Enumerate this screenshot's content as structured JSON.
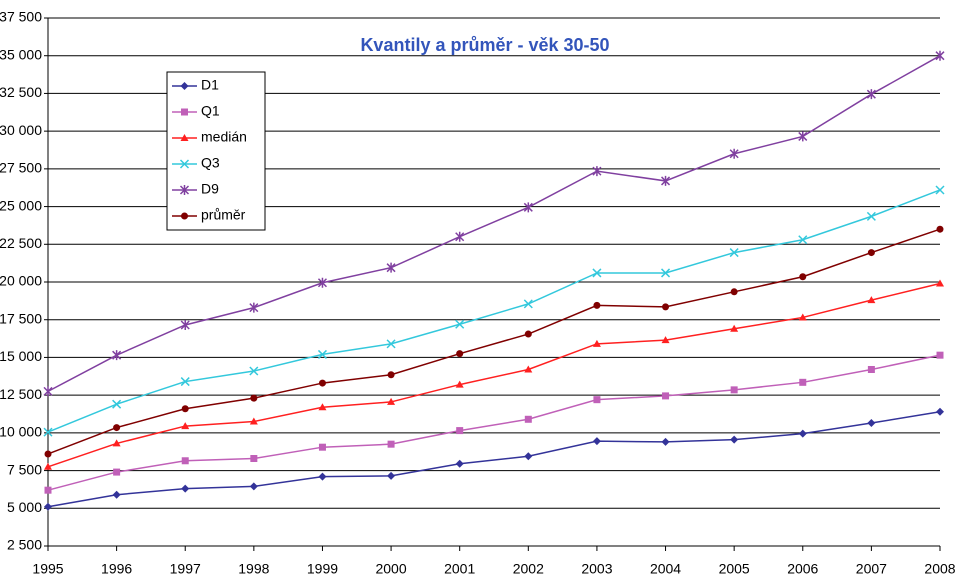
{
  "chart_data": {
    "type": "line",
    "title": "Kvantily a průměr - věk 30-50",
    "categories": [
      "1995",
      "1996",
      "1997",
      "1998",
      "1999",
      "2000",
      "2001",
      "2002",
      "2003",
      "2004",
      "2005",
      "2006",
      "2007",
      "2008"
    ],
    "series": [
      {
        "name": "D1",
        "color": "#333399",
        "marker": "diamond",
        "values": [
          5100,
          5900,
          6300,
          6450,
          7100,
          7150,
          7950,
          8450,
          9450,
          9400,
          9550,
          9950,
          10650,
          11400
        ]
      },
      {
        "name": "Q1",
        "color": "#c060b8",
        "marker": "square",
        "values": [
          6200,
          7400,
          8150,
          8300,
          9050,
          9250,
          10150,
          10900,
          12200,
          12450,
          12850,
          13350,
          14200,
          15150
        ]
      },
      {
        "name": "medián",
        "color": "#ff2020",
        "marker": "triangle",
        "values": [
          7750,
          9300,
          10450,
          10750,
          11700,
          12050,
          13200,
          14200,
          15900,
          16150,
          16900,
          17650,
          18800,
          19900
        ]
      },
      {
        "name": "Q3",
        "color": "#33c8dc",
        "marker": "x",
        "values": [
          10050,
          11900,
          13400,
          14100,
          15200,
          15900,
          17200,
          18550,
          20600,
          20600,
          21950,
          22800,
          24350,
          26100
        ]
      },
      {
        "name": "D9",
        "color": "#8040a0",
        "marker": "star",
        "values": [
          12750,
          15150,
          17150,
          18300,
          19950,
          20950,
          23000,
          24950,
          27350,
          26700,
          28500,
          29650,
          32450,
          35000
        ]
      },
      {
        "name": "průměr",
        "color": "#800000",
        "marker": "circle",
        "values": [
          8600,
          10350,
          11600,
          12300,
          13300,
          13850,
          15250,
          16550,
          18450,
          18350,
          19350,
          20350,
          21950,
          23500
        ]
      }
    ],
    "ylim": [
      2500,
      37500
    ],
    "yticks": [
      {
        "value": 2500,
        "label": "2 500"
      },
      {
        "value": 5000,
        "label": "5 000"
      },
      {
        "value": 7500,
        "label": "7 500"
      },
      {
        "value": 10000,
        "label": "10 000"
      },
      {
        "value": 12500,
        "label": "12 500"
      },
      {
        "value": 15000,
        "label": "15 000"
      },
      {
        "value": 17500,
        "label": "17 500"
      },
      {
        "value": 20000,
        "label": "20 000"
      },
      {
        "value": 22500,
        "label": "22 500"
      },
      {
        "value": 25000,
        "label": "25 000"
      },
      {
        "value": 27500,
        "label": "27 500"
      },
      {
        "value": 30000,
        "label": "30 000"
      },
      {
        "value": 32500,
        "label": "32 500"
      },
      {
        "value": 35000,
        "label": "35 000"
      },
      {
        "value": 37500,
        "label": "37 500"
      }
    ],
    "grid": true,
    "legend": "top-left"
  }
}
